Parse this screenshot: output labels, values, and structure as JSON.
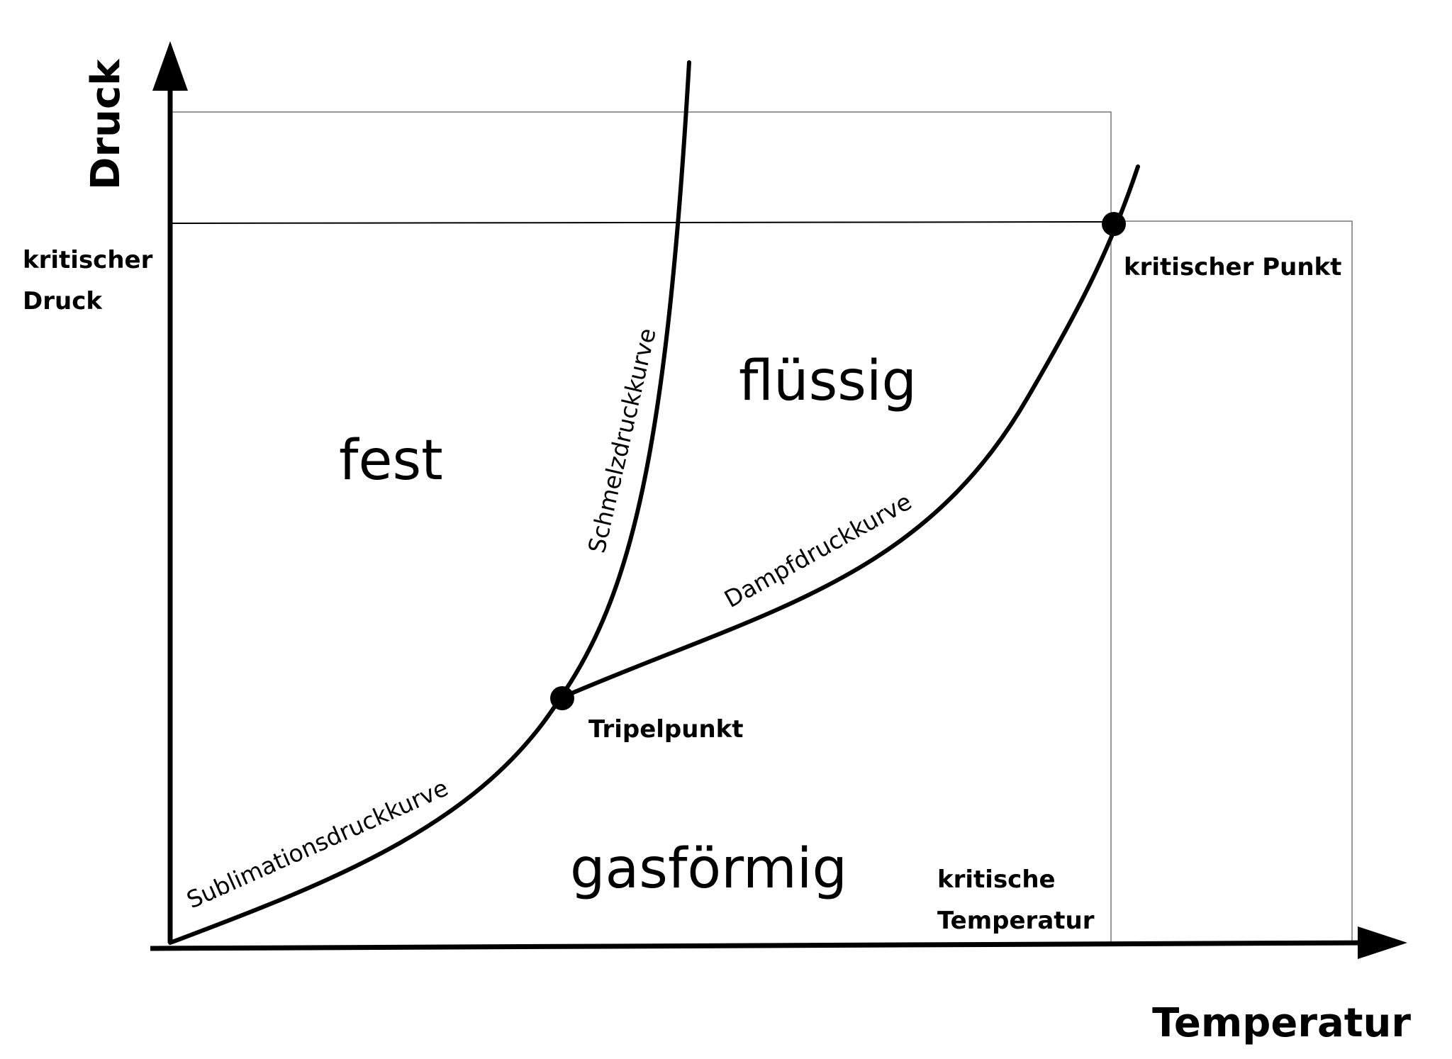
{
  "axes": {
    "y_title": "Druck",
    "x_title": "Temperatur"
  },
  "regions": {
    "solid": "fest",
    "liquid": "flüssig",
    "gas": "gasförmig"
  },
  "curves": {
    "melting": "Schmelzdruckkurve",
    "vapor": "Dampfdruckkurve",
    "sublimation": "Sublimationsdruckkurve"
  },
  "points": {
    "triple": "Tripelpunkt",
    "critical": "kritischer Punkt"
  },
  "critical": {
    "pressure_line1": "kritischer",
    "pressure_line2": "Druck",
    "temperature_line1": "kritische",
    "temperature_line2": "Temperatur"
  }
}
